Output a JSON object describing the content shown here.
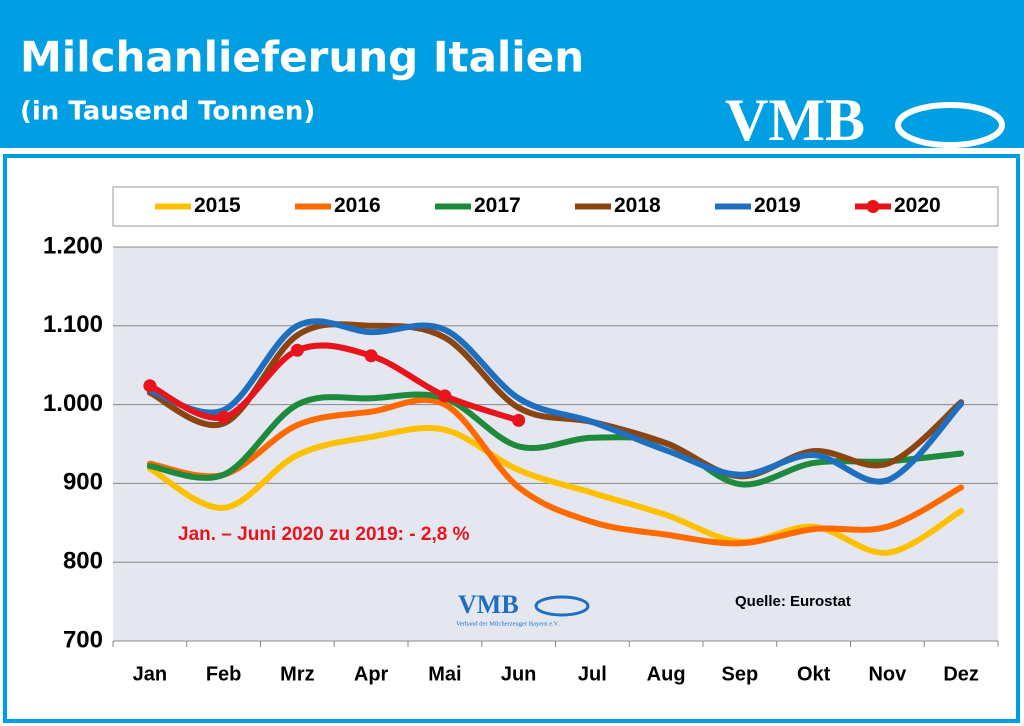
{
  "chart_data": {
    "type": "line",
    "title": "Milchanlieferung Italien",
    "subtitle": "(in Tausend Tonnen)",
    "logo": "VMB",
    "logo_subtitle": "Verband der Milcherzeuger Bayern e.V.",
    "annotation": "Jan. – Juni 2020 zu 2019: - 2,8 %",
    "source": "Quelle: Eurostat",
    "categories": [
      "Jan",
      "Feb",
      "Mrz",
      "Apr",
      "Mai",
      "Jun",
      "Jul",
      "Aug",
      "Sep",
      "Okt",
      "Nov",
      "Dez"
    ],
    "series": [
      {
        "name": "2015",
        "color": "#ffc000",
        "values": [
          919,
          869,
          936,
          959,
          968,
          917,
          888,
          860,
          826,
          845,
          812,
          865
        ]
      },
      {
        "name": "2016",
        "color": "#ff6a00",
        "values": [
          925,
          911,
          974,
          991,
          1000,
          895,
          851,
          835,
          824,
          842,
          845,
          895
        ]
      },
      {
        "name": "2017",
        "color": "#1e8a3c",
        "values": [
          922,
          911,
          1000,
          1008,
          1008,
          947,
          958,
          951,
          899,
          926,
          928,
          938
        ]
      },
      {
        "name": "2018",
        "color": "#8b4513",
        "values": [
          1015,
          976,
          1088,
          1100,
          1085,
          996,
          978,
          951,
          909,
          941,
          925,
          1003
        ]
      },
      {
        "name": "2019",
        "color": "#1f6fc0",
        "values": [
          1018,
          993,
          1100,
          1092,
          1095,
          1008,
          978,
          942,
          911,
          936,
          904,
          1001
        ]
      },
      {
        "name": "2020",
        "color": "#e8141c",
        "markers": true,
        "values": [
          1024,
          984,
          1069,
          1062,
          1011,
          980,
          null,
          null,
          null,
          null,
          null,
          null
        ]
      }
    ],
    "ylim": [
      700,
      1200
    ],
    "yticks": [
      700,
      800,
      900,
      {
        "value": 1000,
        "label": "1.000"
      },
      {
        "value": 1100,
        "label": "1.100"
      },
      {
        "value": 1200,
        "label": "1.200"
      }
    ],
    "grid": true,
    "legend": "top"
  }
}
